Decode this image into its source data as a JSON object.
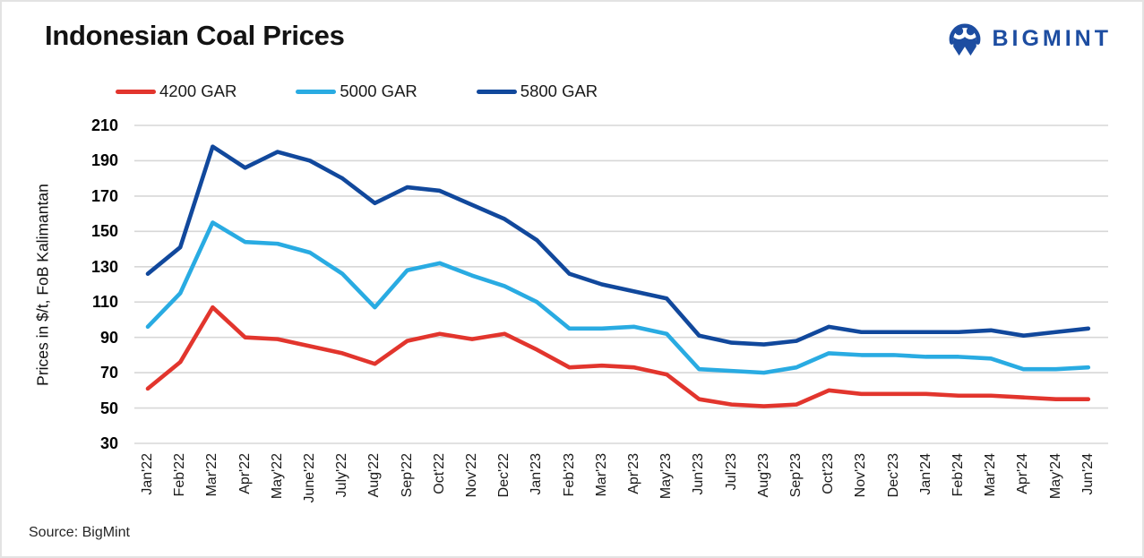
{
  "header": {
    "title": "Indonesian Coal Prices",
    "logo_text": "BIGMINT"
  },
  "source_note": "Source: BigMint",
  "colors": {
    "red": "#e2352d",
    "light_blue": "#29abe2",
    "dark_blue": "#11489c",
    "logo_blue": "#1d4da1",
    "grid": "#d7d7d7",
    "text": "#1a1a1a"
  },
  "chart_data": {
    "type": "line",
    "title": "Indonesian Coal Prices",
    "xlabel": "",
    "ylabel": "Prices in $/t, FoB Kalimantan",
    "ylim": [
      30,
      210
    ],
    "yticks": [
      210,
      190,
      170,
      150,
      130,
      110,
      90,
      70,
      50,
      30
    ],
    "grid": "horizontal",
    "legend_position": "top-left",
    "categories": [
      "Jan'22",
      "Feb'22",
      "Mar'22",
      "Apr'22",
      "May'22",
      "June'22",
      "July'22",
      "Aug'22",
      "Sep'22",
      "Oct'22",
      "Nov'22",
      "Dec'22",
      "Jan'23",
      "Feb'23",
      "Mar'23",
      "Apr'23",
      "May'23",
      "Jun'23",
      "Jul'23",
      "Aug'23",
      "Sep'23",
      "Oct'23",
      "Nov'23",
      "Dec'23",
      "Jan'24",
      "Feb'24",
      "Mar'24",
      "Apr'24",
      "May'24",
      "Jun'24"
    ],
    "series": [
      {
        "name": "4200 GAR",
        "color_key": "red",
        "values": [
          61,
          76,
          107,
          90,
          89,
          85,
          81,
          75,
          88,
          92,
          89,
          92,
          83,
          73,
          74,
          73,
          69,
          55,
          52,
          51,
          52,
          60,
          58,
          58,
          58,
          57,
          57,
          56,
          55,
          55
        ]
      },
      {
        "name": "5000 GAR",
        "color_key": "light_blue",
        "values": [
          96,
          115,
          155,
          144,
          143,
          138,
          126,
          107,
          128,
          132,
          125,
          119,
          110,
          95,
          95,
          96,
          92,
          72,
          71,
          70,
          73,
          81,
          80,
          80,
          79,
          79,
          78,
          72,
          72,
          73
        ]
      },
      {
        "name": "5800 GAR",
        "color_key": "dark_blue",
        "values": [
          126,
          141,
          198,
          186,
          195,
          190,
          180,
          166,
          175,
          173,
          165,
          157,
          145,
          126,
          120,
          116,
          112,
          91,
          87,
          86,
          88,
          96,
          93,
          93,
          93,
          93,
          94,
          91,
          93,
          95
        ]
      }
    ]
  }
}
